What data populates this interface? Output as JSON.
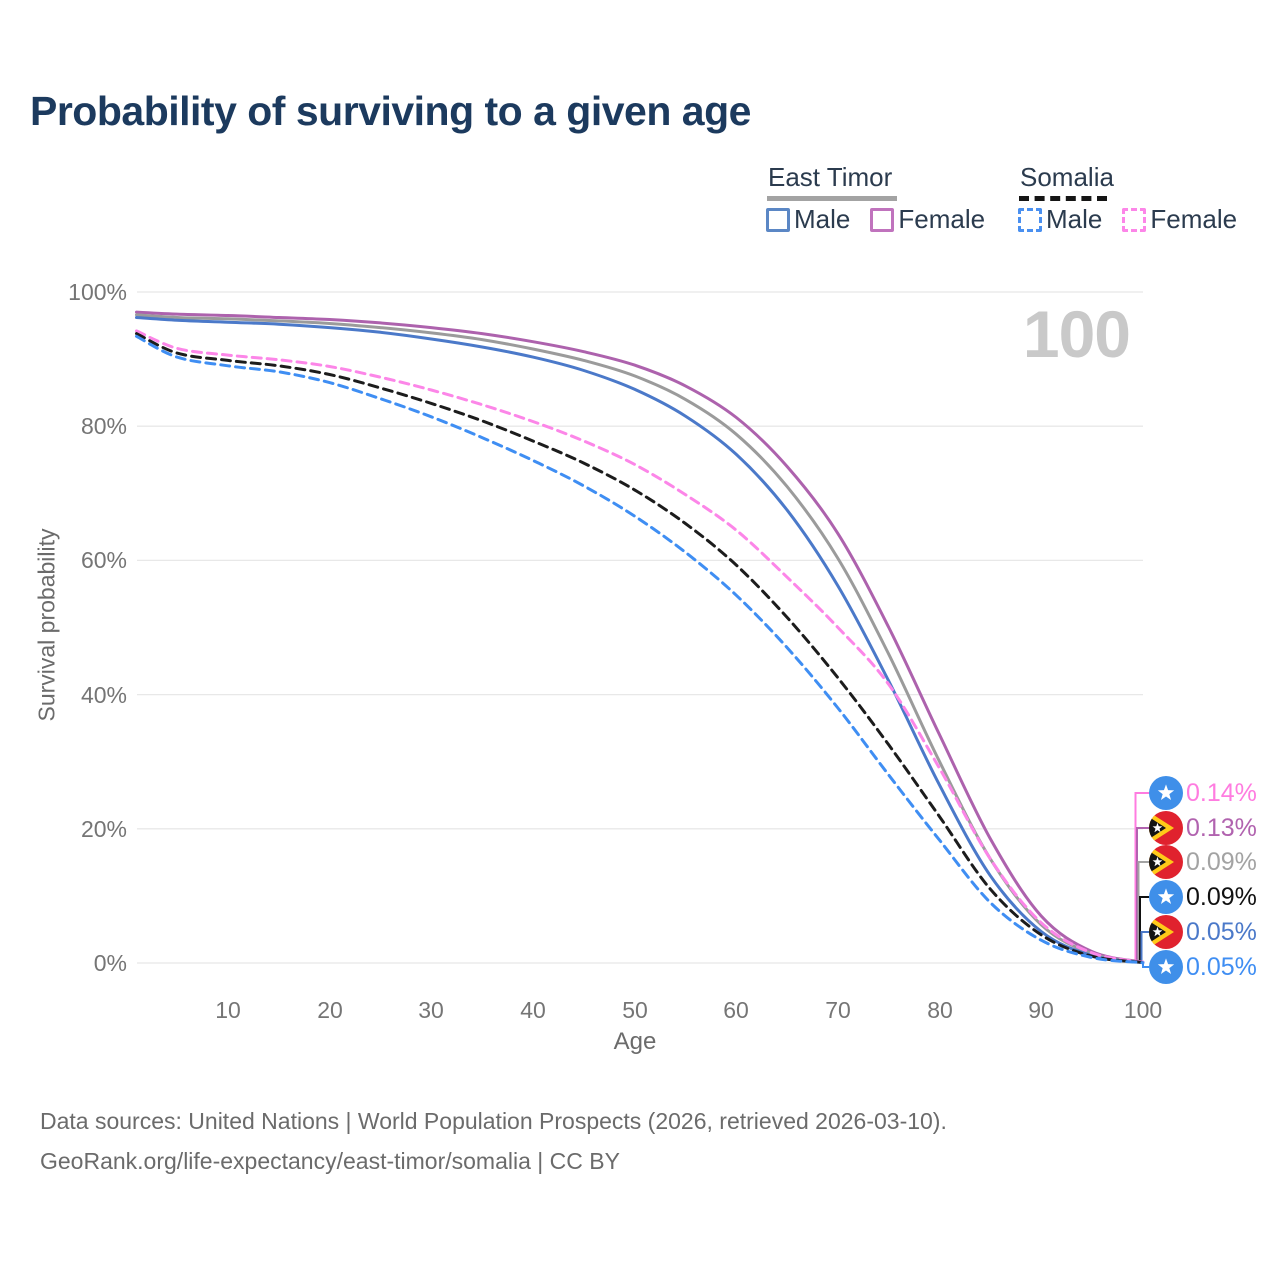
{
  "title": "Probability of surviving to a given age",
  "watermark": "100",
  "legend": {
    "groups": [
      {
        "name": "East Timor",
        "line_style": "solid",
        "underline_color": "#a3a3a3",
        "items": [
          {
            "label": "Male",
            "color": "#5b87c5"
          },
          {
            "label": "Female",
            "color": "#c073bd"
          }
        ]
      },
      {
        "name": "Somalia",
        "line_style": "dashed",
        "underline_color": "#151515",
        "items": [
          {
            "label": "Male",
            "color": "#4a90f0"
          },
          {
            "label": "Female",
            "color": "#fc86e8"
          }
        ]
      }
    ]
  },
  "axes": {
    "y": {
      "label": "Survival probability",
      "ticks": [
        "100%",
        "80%",
        "60%",
        "40%",
        "20%",
        "0%"
      ]
    },
    "x": {
      "label": "Age",
      "ticks": [
        "10",
        "20",
        "30",
        "40",
        "50",
        "60",
        "70",
        "80",
        "90",
        "100"
      ]
    }
  },
  "chart_data": {
    "type": "line",
    "xlabel": "Age",
    "ylabel": "Survival probability",
    "xlim": [
      0,
      100
    ],
    "ylim": [
      0,
      100
    ],
    "grid": "horizontal",
    "x": [
      1,
      5,
      10,
      15,
      20,
      25,
      30,
      35,
      40,
      45,
      50,
      55,
      60,
      65,
      70,
      75,
      80,
      85,
      90,
      95,
      100
    ],
    "series": [
      {
        "name": "East Timor Female",
        "color": "#ad62ad",
        "dash": "solid",
        "values": [
          97.0,
          96.7,
          96.5,
          96.2,
          95.9,
          95.4,
          94.7,
          93.8,
          92.6,
          91.1,
          89.1,
          86.0,
          81.3,
          74.0,
          64.0,
          50.0,
          34.0,
          18.5,
          7.0,
          1.7,
          0.13
        ]
      },
      {
        "name": "East Timor All",
        "color": "#9b9b9b",
        "dash": "solid",
        "values": [
          96.6,
          96.2,
          96.0,
          95.7,
          95.3,
          94.7,
          93.9,
          92.9,
          91.5,
          89.8,
          87.5,
          84.0,
          78.8,
          71.0,
          60.3,
          46.0,
          30.0,
          15.5,
          5.7,
          1.4,
          0.09
        ]
      },
      {
        "name": "East Timor Male",
        "color": "#4b79c9",
        "dash": "solid",
        "values": [
          96.2,
          95.8,
          95.5,
          95.2,
          94.7,
          94.0,
          93.0,
          91.8,
          90.3,
          88.3,
          85.5,
          81.5,
          75.8,
          67.5,
          56.2,
          42.0,
          26.5,
          13.0,
          4.7,
          1.1,
          0.05
        ]
      },
      {
        "name": "Somalia Female",
        "color": "#fc86e8",
        "dash": "dashed",
        "values": [
          94.2,
          91.6,
          90.6,
          89.9,
          88.9,
          87.3,
          85.4,
          83.2,
          80.7,
          77.8,
          74.3,
          69.8,
          64.5,
          57.5,
          50.0,
          41.5,
          29.0,
          15.5,
          6.0,
          1.5,
          0.14
        ]
      },
      {
        "name": "Somalia All",
        "color": "#1c1c1c",
        "dash": "dashed",
        "values": [
          93.8,
          90.9,
          89.8,
          89.0,
          87.7,
          85.7,
          83.4,
          80.8,
          77.8,
          74.5,
          70.5,
          65.5,
          59.3,
          51.5,
          42.5,
          32.5,
          21.8,
          11.0,
          4.2,
          1.0,
          0.09
        ]
      },
      {
        "name": "Somalia Male",
        "color": "#3f8ef3",
        "dash": "dashed",
        "values": [
          93.4,
          90.3,
          89.0,
          88.1,
          86.5,
          84.1,
          81.4,
          78.3,
          74.9,
          71.1,
          66.6,
          61.2,
          54.8,
          47.0,
          38.0,
          28.0,
          18.3,
          9.0,
          3.4,
          0.8,
          0.05
        ]
      }
    ]
  },
  "endpoint_labels": [
    {
      "country": "Somalia",
      "value": "0.14%",
      "color": "#ff7ce0"
    },
    {
      "country": "East Timor",
      "value": "0.13%",
      "color": "#b163af"
    },
    {
      "country": "East Timor",
      "value": "0.09%",
      "color": "#a3a3a3"
    },
    {
      "country": "Somalia",
      "value": "0.09%",
      "color": "#111111"
    },
    {
      "country": "East Timor",
      "value": "0.05%",
      "color": "#4b79c9"
    },
    {
      "country": "Somalia",
      "value": "0.05%",
      "color": "#3f8ef3"
    }
  ],
  "footer": {
    "line1": "Data sources: United Nations | World Population Prospects (2026, retrieved 2026-03-10).",
    "line2": "GeoRank.org/life-expectancy/east-timor/somalia | CC BY"
  },
  "flag_colors": {
    "somalia_blue": "#3f8fe9",
    "star_white": "#ffffff",
    "east_timor_red": "#e0222e",
    "east_timor_yellow": "#ffca18",
    "east_timor_black": "#141414"
  }
}
